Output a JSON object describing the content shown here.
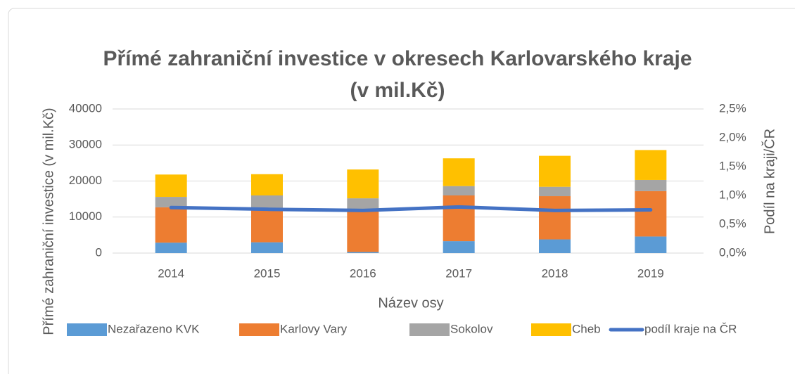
{
  "chart_data": {
    "type": "bar",
    "stacked": true,
    "title": "Přímé zahraniční investice v okresech Karlovarského kraje",
    "subtitle": "(v mil.Kč)",
    "x_label": "Název osy",
    "y_label": "Přímé zahraniční investice (v mil.Kč)",
    "y2_label": "Podíl na kraji/ČR",
    "categories": [
      "2014",
      "2015",
      "2016",
      "2017",
      "2018",
      "2019"
    ],
    "series": [
      {
        "name": "Nezařazeno KVK",
        "color": "#5b9bd5",
        "values": [
          2900,
          3000,
          300,
          3300,
          3800,
          4600
        ]
      },
      {
        "name": "Karlovy Vary",
        "color": "#ed7d31",
        "values": [
          9800,
          9100,
          11800,
          12700,
          12000,
          12600
        ]
      },
      {
        "name": "Sokolov",
        "color": "#a5a5a5",
        "values": [
          2900,
          3900,
          3100,
          2600,
          2600,
          3100
        ]
      },
      {
        "name": "Cheb",
        "color": "#ffc000",
        "values": [
          6200,
          5900,
          8000,
          7700,
          8600,
          8300
        ]
      },
      {
        "name": "podíl kraje na ČR",
        "color": "#4472c4",
        "type": "line",
        "axis": "y2",
        "values": [
          0.79,
          0.76,
          0.74,
          0.8,
          0.74,
          0.75
        ]
      }
    ],
    "ylim": [
      0,
      40000
    ],
    "yticks": [
      0,
      10000,
      20000,
      30000,
      40000
    ],
    "y2lim": [
      0,
      2.5
    ],
    "y2ticks": [
      {
        "value": 0,
        "label": "0,0%"
      },
      {
        "value": 0.5,
        "label": "0,5%"
      },
      {
        "value": 1,
        "label": "1,0%"
      },
      {
        "value": 1.5,
        "label": "1,5%"
      },
      {
        "value": 2,
        "label": "2,0%"
      },
      {
        "value": 2.5,
        "label": "2,5%"
      }
    ],
    "grid": true,
    "legend": "bottom"
  }
}
